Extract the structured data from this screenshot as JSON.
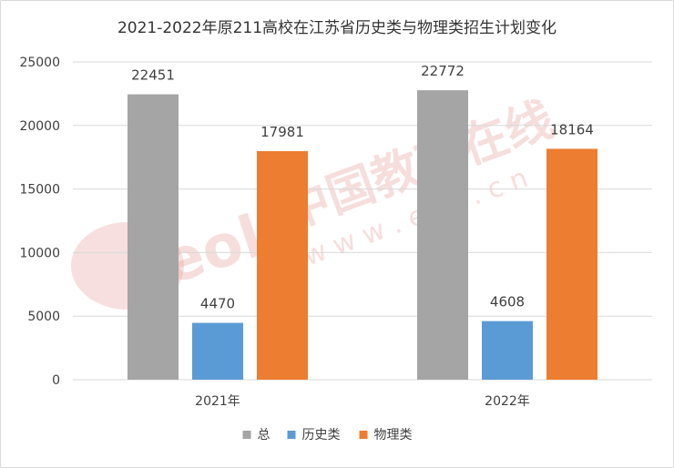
{
  "chart_data": {
    "type": "bar",
    "title": "2021-2022年原211高校在江苏省历史类与物理类招生计划变化",
    "categories": [
      "2021年",
      "2022年"
    ],
    "series": [
      {
        "name": "总",
        "values": [
          22451,
          22772
        ],
        "color": "#a5a5a5"
      },
      {
        "name": "历史类",
        "values": [
          4470,
          4608
        ],
        "color": "#5b9bd5"
      },
      {
        "name": "物理类",
        "values": [
          17981,
          18164
        ],
        "color": "#ed7d31"
      }
    ],
    "ylim": [
      0,
      25000
    ],
    "yticks": [
      0,
      5000,
      10000,
      15000,
      20000,
      25000
    ],
    "grid": true,
    "legend_position": "bottom"
  },
  "watermark": {
    "brand": "中国教育在线",
    "url": "w w w . e o l . c n",
    "logo": "eol"
  }
}
